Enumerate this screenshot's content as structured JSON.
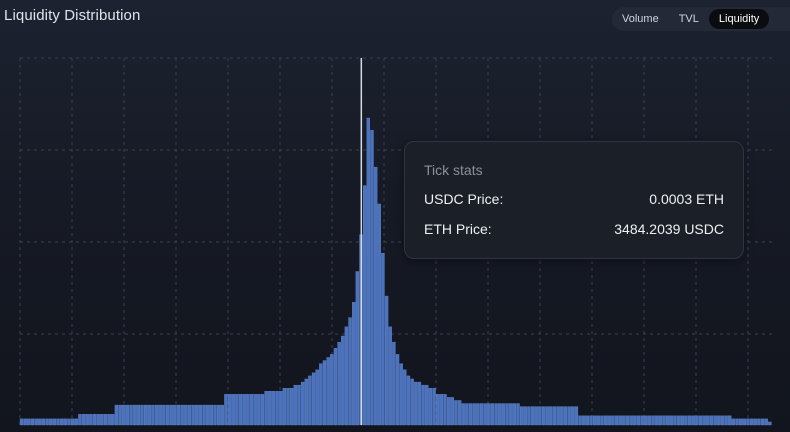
{
  "header": {
    "title": "Liquidity Distribution",
    "tabs": [
      {
        "label": "Volume",
        "active": false
      },
      {
        "label": "TVL",
        "active": false
      },
      {
        "label": "Liquidity",
        "active": true
      }
    ]
  },
  "tooltip": {
    "title": "Tick stats",
    "rows": [
      {
        "label": "USDC Price:",
        "value": "0.0003 ETH"
      },
      {
        "label": "ETH Price:",
        "value": "3484.2039 USDC"
      }
    ]
  },
  "colors": {
    "bar": "#4a72be",
    "bar_edge": "#6d92d6",
    "grid": "#3a4150",
    "current_price_line": "#d6dbe6"
  },
  "chart_data": {
    "type": "bar",
    "title": "Liquidity Distribution",
    "xlabel": "",
    "ylabel": "",
    "grid": true,
    "ylim": [
      0,
      100
    ],
    "current_tick_index": 93,
    "values": [
      2,
      2,
      2,
      2,
      2,
      2,
      2,
      2,
      2,
      2,
      2,
      2,
      2,
      2,
      2,
      2,
      3.5,
      3.5,
      3.5,
      3.5,
      3.5,
      3.5,
      3.5,
      3.5,
      3.5,
      3.5,
      6.5,
      6.5,
      6.5,
      6.5,
      6.5,
      6.5,
      6.5,
      6.5,
      6.5,
      6.5,
      6.5,
      6.5,
      6.5,
      6.5,
      6.5,
      6.5,
      6.5,
      6.5,
      6.5,
      6.5,
      6.5,
      6.5,
      6.5,
      6.5,
      6.5,
      6.5,
      6.5,
      6.5,
      6.5,
      6.5,
      10,
      10,
      10,
      10,
      10,
      10,
      10,
      10,
      10,
      10,
      10,
      11,
      11,
      11,
      11,
      11,
      12,
      12,
      12,
      13,
      13,
      14,
      15,
      16,
      17,
      18,
      20,
      21,
      22,
      23,
      25,
      27,
      29,
      32,
      35,
      40,
      50,
      62,
      78,
      100,
      96,
      84,
      72,
      56,
      42,
      32,
      27,
      23,
      20,
      18,
      16,
      15,
      14,
      14,
      13,
      13,
      12,
      12,
      10,
      10,
      10,
      9,
      9,
      8,
      8,
      7,
      7,
      7,
      7,
      7,
      7,
      7,
      7,
      7,
      7,
      7,
      7,
      7,
      7,
      7,
      7,
      6,
      6,
      6,
      6,
      6,
      6,
      6,
      6,
      6,
      6,
      6,
      6,
      6,
      6,
      6,
      6,
      3,
      3,
      3,
      3,
      3,
      3,
      3,
      3,
      3,
      3,
      3,
      3,
      3,
      3,
      3,
      3,
      3,
      3,
      3,
      3,
      3,
      3,
      3,
      3,
      3,
      3,
      3,
      3,
      3,
      3,
      3,
      3,
      3,
      3,
      3,
      3,
      3,
      3,
      3,
      3,
      3,
      3,
      2,
      2,
      2,
      2,
      2,
      2,
      2,
      2,
      2,
      2,
      1
    ]
  }
}
